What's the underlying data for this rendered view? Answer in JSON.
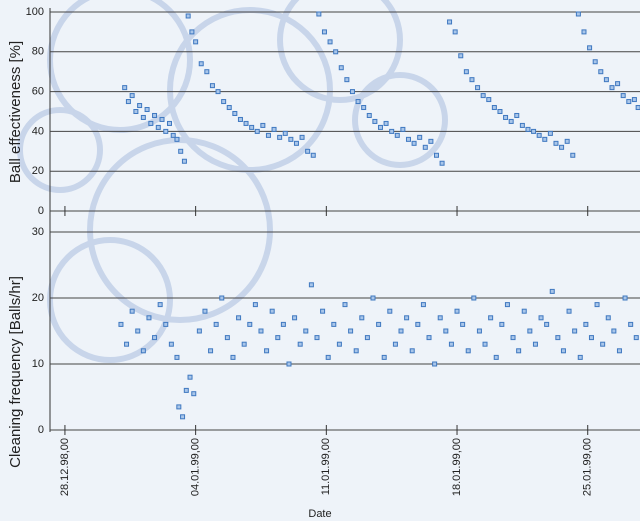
{
  "chart_data": [
    {
      "type": "scatter",
      "ylabel": "Ball effectiveness [%]",
      "color": "#3f78c0",
      "xlim": [
        -0.8,
        30.8
      ],
      "ylim": [
        0,
        100
      ],
      "yticks": [
        0,
        20,
        40,
        60,
        80,
        100
      ],
      "grid": true,
      "x": [
        3.2,
        3.4,
        3.6,
        3.8,
        4.0,
        4.2,
        4.4,
        4.6,
        4.8,
        5.0,
        5.2,
        5.4,
        5.6,
        5.8,
        6.0,
        6.2,
        6.4,
        6.6,
        6.8,
        7.0,
        7.3,
        7.6,
        7.9,
        8.2,
        8.5,
        8.8,
        9.1,
        9.4,
        9.7,
        10.0,
        10.3,
        10.6,
        10.9,
        11.2,
        11.5,
        11.8,
        12.1,
        12.4,
        12.7,
        13.0,
        13.3,
        13.6,
        13.9,
        14.2,
        14.5,
        14.8,
        15.1,
        15.4,
        15.7,
        16.0,
        16.3,
        16.6,
        16.9,
        17.2,
        17.5,
        17.8,
        18.1,
        18.4,
        18.7,
        19.0,
        19.3,
        19.6,
        19.9,
        20.2,
        20.6,
        20.9,
        21.2,
        21.5,
        21.8,
        22.1,
        22.4,
        22.7,
        23.0,
        23.3,
        23.6,
        23.9,
        24.2,
        24.5,
        24.8,
        25.1,
        25.4,
        25.7,
        26.0,
        26.3,
        26.6,
        26.9,
        27.2,
        27.5,
        27.8,
        28.1,
        28.4,
        28.7,
        29.0,
        29.3,
        29.6,
        29.9,
        30.2,
        30.5,
        30.7
      ],
      "values": [
        62,
        55,
        58,
        50,
        53,
        47,
        51,
        44,
        48,
        42,
        46,
        40,
        44,
        38,
        36,
        30,
        25,
        98,
        90,
        85,
        74,
        70,
        63,
        60,
        55,
        52,
        49,
        46,
        44,
        42,
        40,
        43,
        38,
        41,
        37,
        39,
        36,
        34,
        37,
        30,
        28,
        99,
        90,
        85,
        80,
        72,
        66,
        60,
        55,
        52,
        48,
        45,
        42,
        44,
        40,
        38,
        41,
        36,
        34,
        37,
        32,
        35,
        28,
        24,
        95,
        90,
        78,
        70,
        66,
        62,
        58,
        56,
        52,
        50,
        47,
        45,
        48,
        43,
        41,
        40,
        38,
        36,
        39,
        34,
        32,
        35,
        28,
        99,
        90,
        82,
        75,
        70,
        66,
        62,
        64,
        58,
        55,
        56,
        52
      ]
    },
    {
      "type": "scatter",
      "ylabel": "Cleaning frequency [Balls/hr]",
      "xlabel": "Date",
      "color": "#3f78c0",
      "xlim": [
        -0.8,
        30.8
      ],
      "ylim": [
        0,
        30
      ],
      "yticks": [
        0,
        10,
        20,
        30
      ],
      "grid": true,
      "xticks": [
        {
          "value": 0,
          "label": "28.12.98,00"
        },
        {
          "value": 7,
          "label": "04.01.99,00"
        },
        {
          "value": 14,
          "label": "11.01.99,00"
        },
        {
          "value": 21,
          "label": "18.01.99,00"
        },
        {
          "value": 28,
          "label": "25.01.99,00"
        }
      ],
      "x": [
        3.0,
        3.3,
        3.6,
        3.9,
        4.2,
        4.5,
        4.8,
        5.1,
        5.4,
        5.7,
        6.0,
        6.1,
        6.3,
        6.5,
        6.7,
        6.9,
        7.2,
        7.5,
        7.8,
        8.1,
        8.4,
        8.7,
        9.0,
        9.3,
        9.6,
        9.9,
        10.2,
        10.5,
        10.8,
        11.1,
        11.4,
        11.7,
        12.0,
        12.3,
        12.6,
        12.9,
        13.2,
        13.5,
        13.8,
        14.1,
        14.4,
        14.7,
        15.0,
        15.3,
        15.6,
        15.9,
        16.2,
        16.5,
        16.8,
        17.1,
        17.4,
        17.7,
        18.0,
        18.3,
        18.6,
        18.9,
        19.2,
        19.5,
        19.8,
        20.1,
        20.4,
        20.7,
        21.0,
        21.3,
        21.6,
        21.9,
        22.2,
        22.5,
        22.8,
        23.1,
        23.4,
        23.7,
        24.0,
        24.3,
        24.6,
        24.9,
        25.2,
        25.5,
        25.8,
        26.1,
        26.4,
        26.7,
        27.0,
        27.3,
        27.6,
        27.9,
        28.2,
        28.5,
        28.8,
        29.1,
        29.4,
        29.7,
        30.0,
        30.3,
        30.6
      ],
      "values": [
        16,
        13,
        18,
        15,
        12,
        17,
        14,
        19,
        16,
        13,
        11,
        3.5,
        2,
        6,
        8,
        5.5,
        15,
        18,
        12,
        16,
        20,
        14,
        11,
        17,
        13,
        16,
        19,
        15,
        12,
        18,
        14,
        16,
        10,
        17,
        13,
        15,
        22,
        14,
        18,
        11,
        16,
        13,
        19,
        15,
        12,
        17,
        14,
        20,
        16,
        11,
        18,
        13,
        15,
        17,
        12,
        16,
        19,
        14,
        10,
        17,
        15,
        13,
        18,
        16,
        12,
        20,
        15,
        13,
        17,
        11,
        16,
        19,
        14,
        12,
        18,
        15,
        13,
        17,
        16,
        21,
        14,
        12,
        18,
        15,
        11,
        16,
        14,
        19,
        13,
        17,
        15,
        12,
        20,
        16,
        14
      ]
    }
  ]
}
